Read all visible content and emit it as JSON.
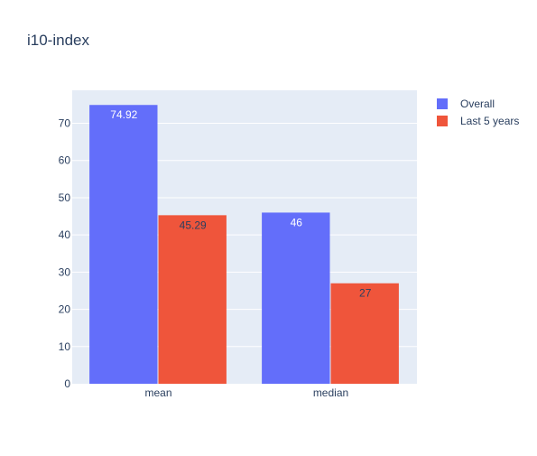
{
  "chart_data": {
    "type": "bar",
    "title": "i10-index",
    "categories": [
      "mean",
      "median"
    ],
    "series": [
      {
        "name": "Overall",
        "values": [
          74.92,
          46
        ],
        "labels": [
          "74.92",
          "46"
        ],
        "color": "#636efa",
        "label_color": "#ffffff"
      },
      {
        "name": "Last 5 years",
        "values": [
          45.29,
          27
        ],
        "labels": [
          "45.29",
          "27"
        ],
        "color": "#ef553b",
        "label_color": "#2a3f5f"
      }
    ],
    "ylim": [
      0,
      78.86
    ],
    "yticks": [
      0,
      10,
      20,
      30,
      40,
      50,
      60,
      70
    ],
    "grid": true,
    "plot_bgcolor": "#e5ecf6",
    "grid_color": "#ffffff",
    "text_color": "#2a3f5f",
    "legend_position": "top-right"
  }
}
